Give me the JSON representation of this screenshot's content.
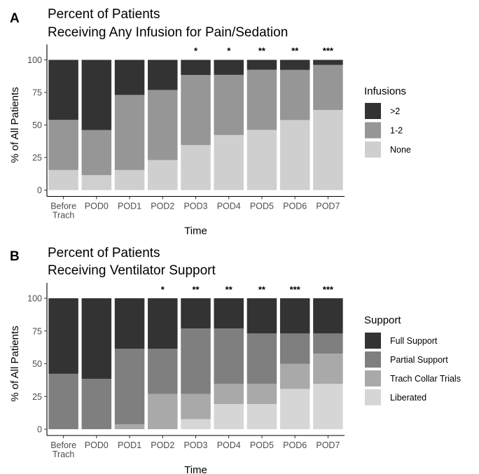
{
  "chart_data": [
    {
      "type": "bar",
      "stacked": true,
      "panel_label": "A",
      "title": "Percent of Patients",
      "subtitle": "Receiving Any Infusion for Pain/Sedation",
      "xlabel": "Time",
      "ylabel": "% of All Patients",
      "ylim": [
        0,
        100
      ],
      "yticks": [
        0,
        25,
        50,
        75,
        100
      ],
      "categories": [
        "Before\nTrach",
        "POD0",
        "POD1",
        "POD2",
        "POD3",
        "POD4",
        "POD5",
        "POD6",
        "POD7"
      ],
      "significance": [
        "",
        "",
        "",
        "",
        "*",
        "*",
        "**",
        "**",
        "***"
      ],
      "legend_title": "Infusions",
      "legend_position": "right",
      "series": [
        {
          "name": "None",
          "color": "#cfcfcf",
          "values": [
            15.4,
            11.5,
            15.4,
            23.1,
            34.6,
            42.3,
            46.2,
            53.8,
            61.5
          ]
        },
        {
          "name": "1-2",
          "color": "#969696",
          "values": [
            38.5,
            34.6,
            57.7,
            53.8,
            53.8,
            46.2,
            46.2,
            38.5,
            34.6
          ]
        },
        {
          "name": ">2",
          "color": "#333333",
          "values": [
            46.1,
            53.9,
            26.9,
            23.1,
            11.6,
            11.5,
            7.6,
            7.7,
            3.9
          ]
        }
      ],
      "legend_order": [
        ">2",
        "1-2",
        "None"
      ]
    },
    {
      "type": "bar",
      "stacked": true,
      "panel_label": "B",
      "title": "Percent of Patients",
      "subtitle": "Receiving Ventilator Support",
      "xlabel": "Time",
      "ylabel": "% of All Patients",
      "ylim": [
        0,
        100
      ],
      "yticks": [
        0,
        25,
        50,
        75,
        100
      ],
      "categories": [
        "Before\nTrach",
        "POD0",
        "POD1",
        "POD2",
        "POD3",
        "POD4",
        "POD5",
        "POD6",
        "POD7"
      ],
      "significance": [
        "",
        "",
        "",
        "*",
        "**",
        "**",
        "**",
        "***",
        "***"
      ],
      "legend_title": "Support",
      "legend_position": "right",
      "series": [
        {
          "name": "Liberated",
          "color": "#d6d6d6",
          "values": [
            0,
            0,
            0,
            0,
            7.7,
            19.2,
            19.2,
            30.8,
            34.6
          ]
        },
        {
          "name": "Trach Collar Trials",
          "color": "#a9a9a9",
          "values": [
            0,
            0,
            3.8,
            26.9,
            19.2,
            15.4,
            15.4,
            19.2,
            23.1
          ]
        },
        {
          "name": "Partial Support",
          "color": "#7f7f7f",
          "values": [
            42.3,
            38.5,
            57.7,
            34.6,
            50.0,
            42.3,
            38.5,
            23.1,
            15.4
          ]
        },
        {
          "name": "Full Support",
          "color": "#333333",
          "values": [
            57.7,
            61.5,
            38.5,
            38.5,
            23.1,
            23.1,
            26.9,
            26.9,
            26.9
          ]
        }
      ],
      "legend_order": [
        "Full Support",
        "Partial Support",
        "Trach Collar Trials",
        "Liberated"
      ]
    }
  ]
}
